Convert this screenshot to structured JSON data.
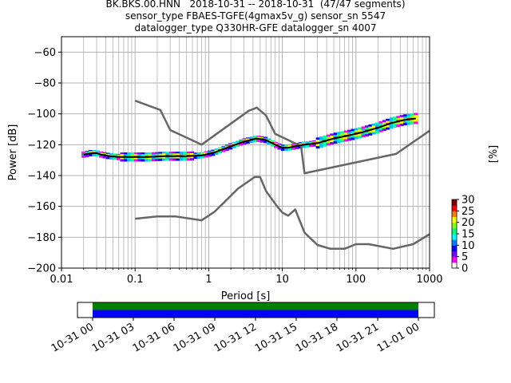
{
  "chart_data": {
    "type": "ppsd",
    "title_lines": [
      "BK.BKS.00.HNN   2018-10-31 -- 2018-10-31  (47/47 segments)",
      "sensor_type FBAES-TGFE(4gmax5v_g) sensor_sn 5547",
      "datalogger_type Q330HR-GFE datalogger_sn 4007"
    ],
    "xlabel": "Period [s]",
    "ylabel": "Power [dB]",
    "x_scale": "log",
    "xlim": [
      0.01,
      1000
    ],
    "ylim": [
      -200,
      -50
    ],
    "x_ticks": [
      0.01,
      0.1,
      1,
      10,
      100,
      1000
    ],
    "x_tick_labels": [
      "0.01",
      "0.1",
      "1",
      "10",
      "100",
      "1000"
    ],
    "y_ticks": [
      -200,
      -180,
      -160,
      -140,
      -120,
      -100,
      -80,
      -60
    ],
    "y_tick_labels": [
      "−200",
      "−180",
      "−160",
      "−140",
      "−120",
      "−100",
      "−80",
      "−60"
    ],
    "grid": true,
    "colorbar": {
      "label": "[%]",
      "range": [
        0,
        30
      ],
      "ticks": [
        0,
        5,
        10,
        15,
        20,
        25,
        30
      ],
      "tick_labels": [
        "0",
        "5",
        "10",
        "15",
        "20",
        "25",
        "30"
      ]
    },
    "series": [
      {
        "color": "#666666",
        "x": [
          0.1,
          0.22,
          0.3,
          0.8,
          3.5,
          4.5,
          6,
          8,
          18,
          20,
          350,
          1000
        ],
        "y": [
          -91.5,
          -97.5,
          -110.5,
          -120,
          -98,
          -96,
          -101,
          -113,
          -121,
          -138.5,
          -126,
          -111
        ]
      },
      {
        "color": "#666666",
        "x": [
          0.1,
          0.2,
          0.35,
          0.8,
          1.2,
          2.5,
          4.2,
          5,
          6,
          8.5,
          10,
          12,
          15,
          20,
          30,
          45,
          70,
          100,
          150,
          320,
          600,
          1000
        ],
        "y": [
          -168,
          -166.5,
          -166.5,
          -169,
          -163.5,
          -148.5,
          -141,
          -141,
          -150,
          -160,
          -164,
          -166,
          -162,
          -177,
          -185,
          -187.5,
          -187.5,
          -184.5,
          -184.5,
          -187.5,
          -184.5,
          -178
        ]
      },
      {
        "color": "#000000",
        "x": [
          0.02,
          0.025,
          0.03,
          0.035,
          0.045,
          0.06,
          0.08,
          0.1,
          0.15,
          0.25,
          0.5,
          0.8,
          1.2,
          2,
          3,
          4.5,
          6,
          8,
          10,
          12,
          15,
          20,
          30,
          50,
          80,
          120,
          200,
          300,
          450,
          650
        ],
        "y": [
          -126.5,
          -125.5,
          -125.5,
          -126.5,
          -127.5,
          -128,
          -128,
          -128,
          -128,
          -127.5,
          -127.5,
          -127,
          -125,
          -121,
          -118,
          -116,
          -117,
          -120,
          -122,
          -122,
          -121,
          -120,
          -119,
          -116,
          -114,
          -112,
          -109,
          -106,
          -104,
          -103
        ]
      }
    ],
    "time_bar": {
      "ticks": [
        "10-31 00",
        "10-31 03",
        "10-31 06",
        "10-31 09",
        "10-31 12",
        "10-31 15",
        "10-31 18",
        "10-31 21",
        "11-01 00"
      ],
      "span_hours": [
        0,
        24
      ],
      "bands": [
        {
          "color": "#008000",
          "from_hour": 0,
          "to_hour": 24
        },
        {
          "color": "#0000ff",
          "from_hour": 0,
          "to_hour": 24
        }
      ]
    }
  }
}
